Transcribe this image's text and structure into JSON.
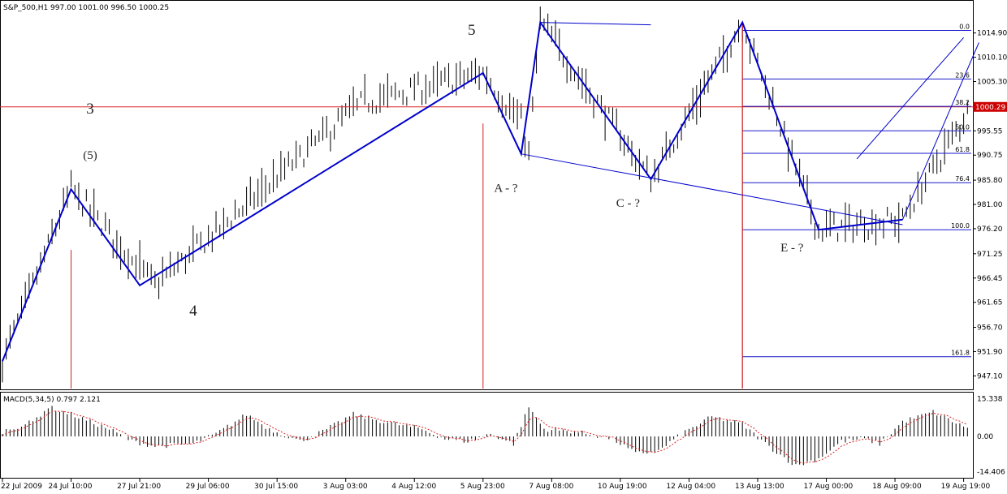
{
  "window": {
    "symbol_header": "S&P_500,H1  997.00 1001.00 996.50 1000.25",
    "macd_header": "MACD(5,34,5) 0.797 2.121"
  },
  "chart_data": {
    "type": "candlestick",
    "symbol": "S&P_500",
    "timeframe": "H1",
    "ohlc": {
      "open": 997.0,
      "high": 1001.0,
      "low": 996.5,
      "close": 1000.25
    },
    "price_ylim": [
      944.6,
      1021.1
    ],
    "price_ticks": [
      "1014.90",
      "1010.10",
      "1005.30",
      "1000.50",
      "995.55",
      "990.75",
      "985.80",
      "981.00",
      "976.20",
      "971.25",
      "966.45",
      "961.65",
      "956.70",
      "951.90",
      "947.10"
    ],
    "price_tick_values": [
      1014.9,
      1010.1,
      1005.3,
      1000.5,
      995.55,
      990.75,
      985.8,
      981.0,
      976.2,
      971.25,
      966.45,
      961.65,
      956.7,
      951.9,
      947.1
    ],
    "current_price": "1000.29",
    "current_price_value": 1000.29,
    "x_count": 254,
    "x_ticks": [
      "22 Jul 2009",
      "24 Jul 10:00",
      "27 Jul 21:00",
      "29 Jul 06:00",
      "30 Jul 15:00",
      "3 Aug 03:00",
      "4 Aug 12:00",
      "5 Aug 23:00",
      "7 Aug 08:00",
      "10 Aug 19:00",
      "12 Aug 04:00",
      "13 Aug 13:00",
      "17 Aug 00:00",
      "18 Aug 09:00",
      "19 Aug 19:00"
    ],
    "x_tick_index": [
      0,
      18,
      36,
      54,
      72,
      90,
      108,
      126,
      144,
      162,
      180,
      198,
      216,
      234,
      252
    ],
    "price_path": [
      [
        0,
        950
      ],
      [
        18,
        984
      ],
      [
        40,
        965
      ],
      [
        94,
        1001
      ],
      [
        126,
        1007
      ],
      [
        136,
        997
      ],
      [
        138,
        991
      ],
      [
        141,
        1017
      ],
      [
        170,
        986
      ],
      [
        194,
        1017
      ],
      [
        214,
        976
      ],
      [
        236,
        978
      ],
      [
        256,
        1003
      ]
    ],
    "elliott_wave": [
      [
        0,
        950
      ],
      [
        18,
        984
      ],
      [
        36,
        965
      ],
      [
        126,
        1007
      ],
      [
        136,
        991
      ],
      [
        141,
        1017
      ],
      [
        170,
        986
      ],
      [
        194,
        1017
      ],
      [
        214,
        976
      ],
      [
        236,
        978
      ]
    ],
    "fibonacci": {
      "levels": [
        {
          "label": "0.0",
          "price": 1015.4
        },
        {
          "label": "23.6",
          "price": 1005.8
        },
        {
          "label": "38.2",
          "price": 1000.4
        },
        {
          "label": "50.0",
          "price": 995.55
        },
        {
          "label": "61.8",
          "price": 991.1
        },
        {
          "label": "76.4",
          "price": 985.3
        },
        {
          "label": "100.0",
          "price": 976.0
        },
        {
          "label": "161.8",
          "price": 950.9
        }
      ],
      "start_index": 194
    },
    "annotations": [
      {
        "text": "3",
        "x": 23,
        "price": 999.0
      },
      {
        "text": "(5)",
        "x": 23,
        "price": 990.0
      },
      {
        "text": "4",
        "x": 50,
        "price": 959.0
      },
      {
        "text": "5",
        "x": 123,
        "price": 1014.5
      },
      {
        "text": "A - ?",
        "x": 132,
        "price": 983.5
      },
      {
        "text": "C - ?",
        "x": 164,
        "price": 980.5
      },
      {
        "text": "E - ?",
        "x": 207,
        "price": 971.7
      }
    ],
    "macd": {
      "params": "5,34,5",
      "main": 0.797,
      "signal": 2.121,
      "ylim": [
        -16.5,
        17.5
      ],
      "ticks": [
        "15.338",
        "0.00",
        "-14.406"
      ],
      "tick_values": [
        15.338,
        0,
        -14.406
      ],
      "path": [
        [
          0,
          2
        ],
        [
          8,
          6
        ],
        [
          12,
          12
        ],
        [
          18,
          9
        ],
        [
          28,
          3
        ],
        [
          34,
          -2
        ],
        [
          40,
          -4
        ],
        [
          50,
          -3
        ],
        [
          56,
          1
        ],
        [
          64,
          9
        ],
        [
          70,
          3
        ],
        [
          78,
          -2
        ],
        [
          84,
          2
        ],
        [
          92,
          9
        ],
        [
          100,
          6
        ],
        [
          110,
          3
        ],
        [
          116,
          -1
        ],
        [
          122,
          -2
        ],
        [
          128,
          1
        ],
        [
          134,
          -3
        ],
        [
          138,
          12
        ],
        [
          142,
          3
        ],
        [
          150,
          2
        ],
        [
          160,
          -1
        ],
        [
          166,
          -7
        ],
        [
          172,
          -6
        ],
        [
          178,
          1
        ],
        [
          186,
          8
        ],
        [
          194,
          5
        ],
        [
          200,
          -3
        ],
        [
          208,
          -12
        ],
        [
          214,
          -9
        ],
        [
          220,
          -2
        ],
        [
          226,
          -1
        ],
        [
          230,
          -3
        ],
        [
          236,
          6
        ],
        [
          244,
          10
        ],
        [
          252,
          4
        ]
      ]
    },
    "colors": {
      "up": "#000000",
      "down": "#000000",
      "wave_line": "#0000cc",
      "fib_line": "#1a1acc",
      "vertical_marker": "#cc2222",
      "price_line": "#dd2222",
      "price_label_bg": "#cc0000",
      "divergence": "#dd2222"
    }
  }
}
